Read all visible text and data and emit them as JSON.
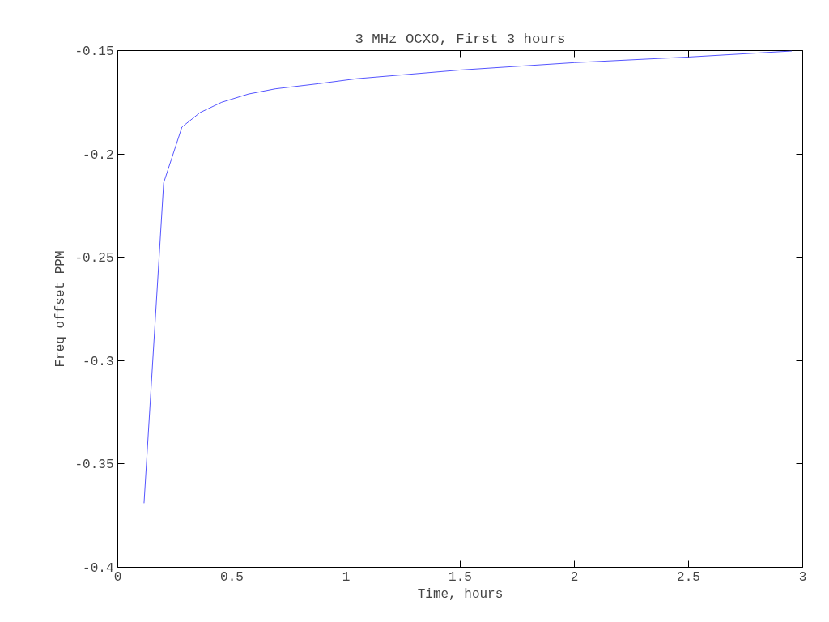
{
  "chart_data": {
    "type": "line",
    "title": "3 MHz OCXO, First 3 hours",
    "xlabel": "Time, hours",
    "ylabel": "Freq offset PPM",
    "x": [
      0.115,
      0.201,
      0.281,
      0.36,
      0.455,
      0.573,
      0.69,
      0.88,
      1.046,
      1.498,
      2.001,
      2.5,
      2.952
    ],
    "series": [
      {
        "color": "#5555ff",
        "values": [
          -0.369,
          -0.214,
          -0.187,
          -0.18,
          -0.175,
          -0.171,
          -0.1685,
          -0.166,
          -0.1636,
          -0.1594,
          -0.1558,
          -0.1531,
          -0.1502
        ]
      }
    ],
    "xlim": [
      0,
      3
    ],
    "ylim": [
      -0.4,
      -0.15
    ],
    "xticks": [
      0,
      0.5,
      1,
      1.5,
      2,
      2.5,
      3
    ],
    "yticks": [
      -0.4,
      -0.35,
      -0.3,
      -0.25,
      -0.2,
      -0.15
    ],
    "marker": "none",
    "line_style": "solid"
  }
}
